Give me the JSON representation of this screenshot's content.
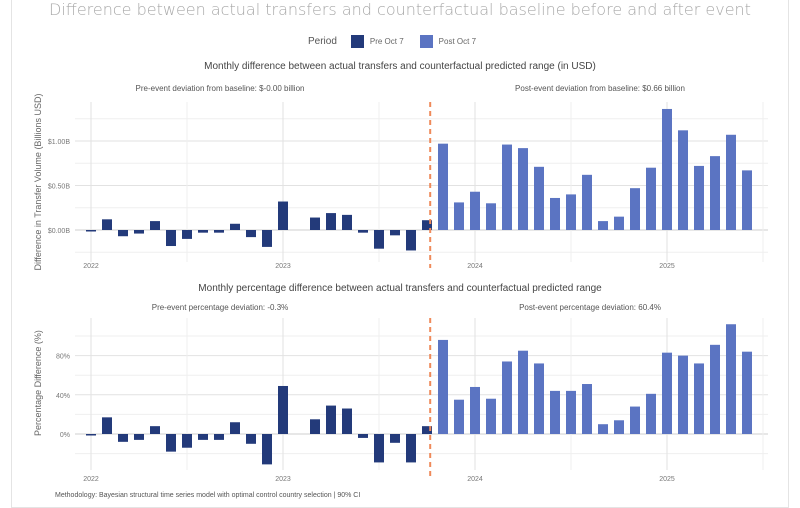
{
  "title": "Difference between actual transfers and counterfactual baseline before and after event",
  "legend": {
    "title": "Period",
    "items": [
      {
        "label": "Pre Oct 7",
        "color": "#233a7a"
      },
      {
        "label": "Post Oct 7",
        "color": "#5b74c2"
      }
    ]
  },
  "event_line_color": "#ef8a5a",
  "methodology": "Methodology: Bayesian structural time series model with optimal control country selection | 90% CI",
  "chart_data": [
    {
      "type": "bar",
      "title": "Monthly difference between actual transfers and counterfactual predicted range (in USD)",
      "ylabel": "Difference in Transfer Volume (Billions USD)",
      "xlabel": "",
      "pre_annotation": "Pre-event deviation from baseline: $-0.00 billion",
      "post_annotation": "Post-event deviation from baseline: $0.66 billion",
      "ylim": [
        -0.3,
        1.45
      ],
      "yticks": [
        0.0,
        0.5,
        1.0
      ],
      "ytick_labels": [
        "$0.00B",
        "$0.50B",
        "$1.00B"
      ],
      "xtick_labels": [
        "2022",
        "2023",
        "2024",
        "2025"
      ],
      "event": "Oct 7 2023",
      "grid": true,
      "series": [
        {
          "name": "Pre Oct 7",
          "start": "2022-01",
          "values": [
            -0.01,
            0.12,
            -0.07,
            -0.04,
            0.1,
            -0.18,
            -0.1,
            -0.03,
            -0.03,
            0.07,
            -0.08,
            -0.19,
            0.32,
            null,
            0.14,
            0.19,
            0.17,
            -0.03,
            -0.21,
            -0.06,
            -0.23,
            0.11
          ]
        },
        {
          "name": "Post Oct 7",
          "start": "2023-11",
          "values": [
            0.97,
            0.31,
            0.43,
            0.3,
            0.96,
            0.92,
            0.71,
            0.36,
            0.4,
            0.62,
            0.1,
            0.15,
            0.47,
            0.7,
            1.36,
            1.12,
            0.72,
            0.83,
            1.07,
            0.67
          ]
        }
      ]
    },
    {
      "type": "bar",
      "title": "Monthly percentage difference between actual transfers and counterfactual predicted range",
      "ylabel": "Percentage Difference (%)",
      "xlabel": "",
      "pre_annotation": "Pre-event percentage deviation: -0.3%",
      "post_annotation": "Post-event percentage deviation: 60.4%",
      "ylim": [
        -37,
        120
      ],
      "yticks": [
        0,
        40,
        80
      ],
      "ytick_labels": [
        "0%",
        "40%",
        "80%"
      ],
      "xtick_labels": [
        "2022",
        "2023",
        "2024",
        "2025"
      ],
      "event": "Oct 7 2023",
      "grid": true,
      "series": [
        {
          "name": "Pre Oct 7",
          "start": "2022-01",
          "values": [
            -1,
            17,
            -8,
            -6,
            8,
            -18,
            -14,
            -6,
            -6,
            12,
            -10,
            -31,
            49,
            null,
            15,
            29,
            26,
            -4,
            -29,
            -9,
            -29,
            8
          ]
        },
        {
          "name": "Post Oct 7",
          "start": "2023-11",
          "values": [
            96,
            35,
            48,
            36,
            74,
            85,
            72,
            44,
            44,
            51,
            10,
            14,
            28,
            41,
            83,
            80,
            72,
            91,
            112,
            84
          ]
        }
      ]
    }
  ]
}
